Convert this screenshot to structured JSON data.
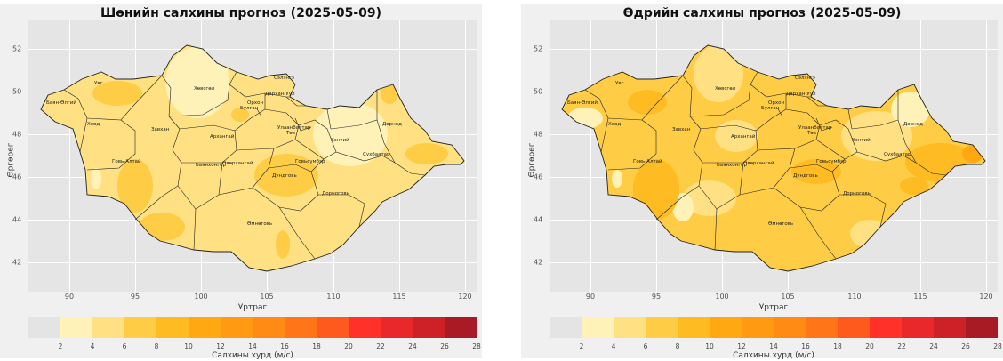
{
  "axis": {
    "xlabel": "Уртраг",
    "ylabel": "Өргөрөг",
    "x_ticks": [
      "90",
      "95",
      "100",
      "105",
      "110",
      "115",
      "120"
    ],
    "y_ticks": [
      "52",
      "50",
      "48",
      "46",
      "44",
      "42"
    ]
  },
  "colorbar": {
    "label": "Салхины хурд (м/с)",
    "ticks": [
      "2",
      "4",
      "6",
      "8",
      "10",
      "12",
      "14",
      "16",
      "18",
      "20",
      "22",
      "24",
      "26",
      "28"
    ],
    "colors": [
      "#e4e4e4",
      "#fff2b8",
      "#ffe082",
      "#ffcd45",
      "#ffbb22",
      "#ffa811",
      "#ff9a12",
      "#ff8a14",
      "#ff7518",
      "#ff5a1e",
      "#ff3129",
      "#e8282a",
      "#cc2227",
      "#a81a24"
    ]
  },
  "aimag_names": [
    "Баян-Өлгий",
    "Увс",
    "Ховд",
    "Хөвсгөл",
    "Завхан",
    "Архангай",
    "Булган",
    "Орхон",
    "Сэлэнгэ",
    "Дархан-Уул",
    "Улаанбаатар",
    "Төв",
    "Хэнтий",
    "Дорнод",
    "Сүхбаатар",
    "Говь-Алтай",
    "Баянхонгор",
    "Өвөрхангай",
    "Дундговь",
    "Говьсүмбэр",
    "Дорноговь",
    "Өмнөговь"
  ],
  "chart_data": [
    {
      "type": "heatmap",
      "title": "Шөнийн салхины прогноз (2025-05-09)",
      "xlabel": "Уртраг",
      "ylabel": "Өргөрөг",
      "xlim": [
        87,
        121
      ],
      "ylim": [
        40.7,
        53.2
      ],
      "dominant_speed_range_ms": [
        2,
        8
      ],
      "colorbar_range_ms": [
        0,
        28
      ]
    },
    {
      "type": "heatmap",
      "title": "Өдрийн салхины прогноз (2025-05-09)",
      "xlabel": "Уртраг",
      "ylabel": "Өргөрөг",
      "xlim": [
        87,
        121
      ],
      "ylim": [
        40.7,
        53.2
      ],
      "dominant_speed_range_ms": [
        4,
        10
      ],
      "colorbar_range_ms": [
        0,
        28
      ]
    }
  ]
}
